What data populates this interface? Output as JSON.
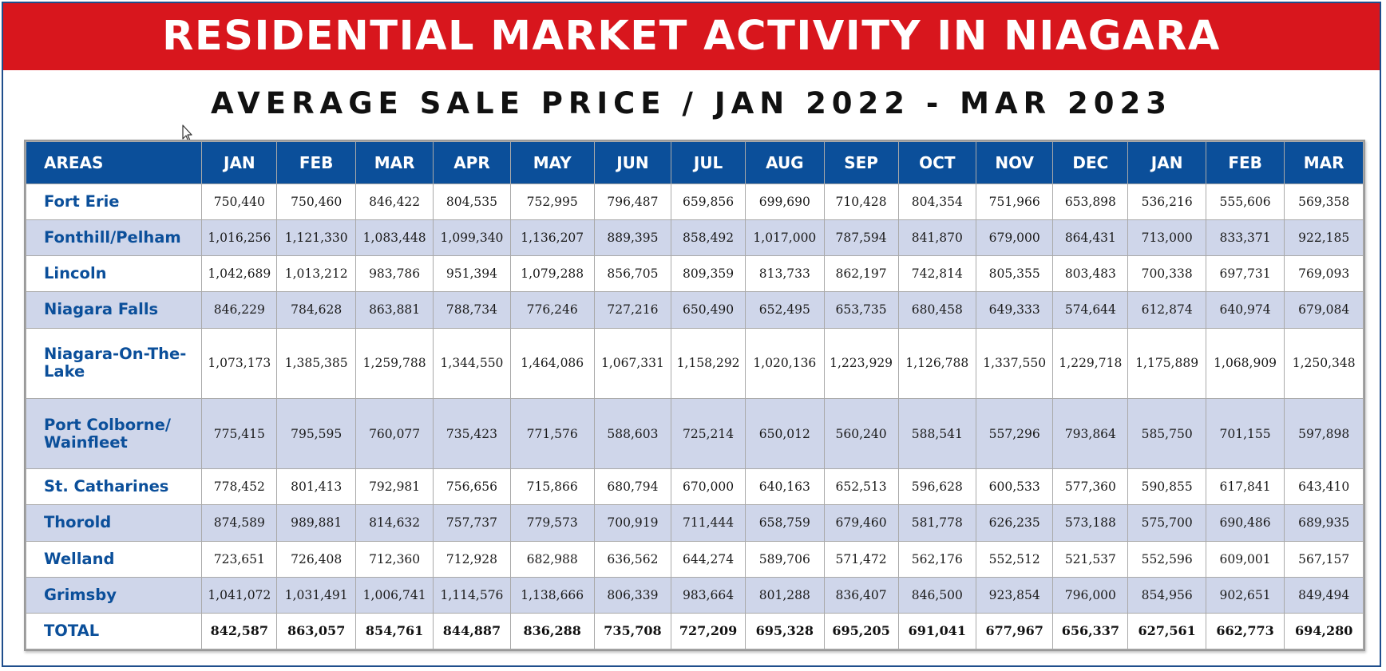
{
  "title": "RESIDENTIAL MARKET ACTIVITY IN NIAGARA",
  "subtitle": "AVERAGE SALE PRICE / JAN 2022 - MAR 2023",
  "colors": {
    "banner": "#d8161d",
    "header": "#0b4f9a",
    "alt_row": "#cfd6ea",
    "area_text": "#0b4f9a"
  },
  "table": {
    "columns": [
      "AREAS",
      "JAN",
      "FEB",
      "MAR",
      "APR",
      "MAY",
      "JUN",
      "JUL",
      "AUG",
      "SEP",
      "OCT",
      "NOV",
      "DEC",
      "JAN",
      "FEB",
      "MAR"
    ],
    "rows": [
      {
        "area": "Fort Erie",
        "values": [
          "750,440",
          "750,460",
          "846,422",
          "804,535",
          "752,995",
          "796,487",
          "659,856",
          "699,690",
          "710,428",
          "804,354",
          "751,966",
          "653,898",
          "536,216",
          "555,606",
          "569,358"
        ]
      },
      {
        "area": "Fonthill/Pelham",
        "values": [
          "1,016,256",
          "1,121,330",
          "1,083,448",
          "1,099,340",
          "1,136,207",
          "889,395",
          "858,492",
          "1,017,000",
          "787,594",
          "841,870",
          "679,000",
          "864,431",
          "713,000",
          "833,371",
          "922,185"
        ]
      },
      {
        "area": "Lincoln",
        "values": [
          "1,042,689",
          "1,013,212",
          "983,786",
          "951,394",
          "1,079,288",
          "856,705",
          "809,359",
          "813,733",
          "862,197",
          "742,814",
          "805,355",
          "803,483",
          "700,338",
          "697,731",
          "769,093"
        ]
      },
      {
        "area": "Niagara Falls",
        "values": [
          "846,229",
          "784,628",
          "863,881",
          "788,734",
          "776,246",
          "727,216",
          "650,490",
          "652,495",
          "653,735",
          "680,458",
          "649,333",
          "574,644",
          "612,874",
          "640,974",
          "679,084"
        ]
      },
      {
        "area": "Niagara-On-The-Lake",
        "values": [
          "1,073,173",
          "1,385,385",
          "1,259,788",
          "1,344,550",
          "1,464,086",
          "1,067,331",
          "1,158,292",
          "1,020,136",
          "1,223,929",
          "1,126,788",
          "1,337,550",
          "1,229,718",
          "1,175,889",
          "1,068,909",
          "1,250,348"
        ]
      },
      {
        "area": "Port Colborne/ Wainfleet",
        "values": [
          "775,415",
          "795,595",
          "760,077",
          "735,423",
          "771,576",
          "588,603",
          "725,214",
          "650,012",
          "560,240",
          "588,541",
          "557,296",
          "793,864",
          "585,750",
          "701,155",
          "597,898"
        ]
      },
      {
        "area": "St. Catharines",
        "values": [
          "778,452",
          "801,413",
          "792,981",
          "756,656",
          "715,866",
          "680,794",
          "670,000",
          "640,163",
          "652,513",
          "596,628",
          "600,533",
          "577,360",
          "590,855",
          "617,841",
          "643,410"
        ]
      },
      {
        "area": "Thorold",
        "values": [
          "874,589",
          "989,881",
          "814,632",
          "757,737",
          "779,573",
          "700,919",
          "711,444",
          "658,759",
          "679,460",
          "581,778",
          "626,235",
          "573,188",
          "575,700",
          "690,486",
          "689,935"
        ]
      },
      {
        "area": "Welland",
        "values": [
          "723,651",
          "726,408",
          "712,360",
          "712,928",
          "682,988",
          "636,562",
          "644,274",
          "589,706",
          "571,472",
          "562,176",
          "552,512",
          "521,537",
          "552,596",
          "609,001",
          "567,157"
        ]
      },
      {
        "area": "Grimsby",
        "values": [
          "1,041,072",
          "1,031,491",
          "1,006,741",
          "1,114,576",
          "1,138,666",
          "806,339",
          "983,664",
          "801,288",
          "836,407",
          "846,500",
          "923,854",
          "796,000",
          "854,956",
          "902,651",
          "849,494"
        ]
      },
      {
        "area": "TOTAL",
        "values": [
          "842,587",
          "863,057",
          "854,761",
          "844,887",
          "836,288",
          "735,708",
          "727,209",
          "695,328",
          "695,205",
          "691,041",
          "677,967",
          "656,337",
          "627,561",
          "662,773",
          "694,280"
        ]
      }
    ]
  }
}
